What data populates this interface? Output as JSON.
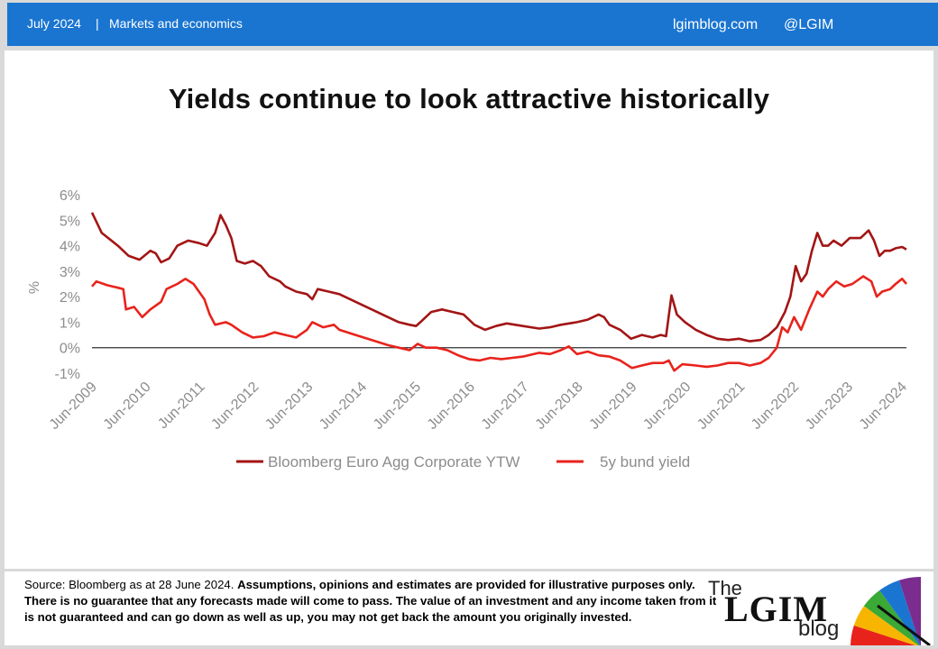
{
  "header": {
    "date": "July 2024",
    "separator": "|",
    "category": "Markets and economics",
    "site": "lgimblog.com",
    "handle": "@LGIM"
  },
  "chart_title": "Yields continue to look attractive historically",
  "chart_data": {
    "type": "line",
    "title": "Yields continue to look attractive historically",
    "xlabel": "",
    "ylabel": "%",
    "ylim": [
      -1,
      6
    ],
    "yticks": [
      "-1%",
      "0%",
      "1%",
      "2%",
      "3%",
      "4%",
      "5%",
      "6%"
    ],
    "xlim": [
      2009.42,
      2024.5
    ],
    "xtick_values": [
      2009.42,
      2010.42,
      2011.42,
      2012.42,
      2013.42,
      2014.42,
      2015.42,
      2016.42,
      2017.42,
      2018.42,
      2019.42,
      2020.42,
      2021.42,
      2022.42,
      2023.42,
      2024.42
    ],
    "xticks": [
      "Jun-2009",
      "Jun-2010",
      "Jun-2011",
      "Jun-2012",
      "Jun-2013",
      "Jun-2014",
      "Jun-2015",
      "Jun-2016",
      "Jun-2017",
      "Jun-2018",
      "Jun-2019",
      "Jun-2020",
      "Jun-2021",
      "Jun-2022",
      "Jun-2023",
      "Jun-2024"
    ],
    "legend_position": "bottom",
    "zero_line": true,
    "series": [
      {
        "name": "Bloomberg Euro Agg Corporate YTW",
        "color": "#a31515",
        "points": [
          [
            2009.42,
            5.3
          ],
          [
            2009.6,
            4.5
          ],
          [
            2009.9,
            4.0
          ],
          [
            2010.1,
            3.6
          ],
          [
            2010.3,
            3.45
          ],
          [
            2010.5,
            3.8
          ],
          [
            2010.6,
            3.7
          ],
          [
            2010.7,
            3.35
          ],
          [
            2010.85,
            3.5
          ],
          [
            2011.0,
            4.0
          ],
          [
            2011.2,
            4.2
          ],
          [
            2011.4,
            4.1
          ],
          [
            2011.55,
            4.0
          ],
          [
            2011.7,
            4.5
          ],
          [
            2011.8,
            5.2
          ],
          [
            2011.9,
            4.8
          ],
          [
            2012.0,
            4.3
          ],
          [
            2012.1,
            3.4
          ],
          [
            2012.25,
            3.3
          ],
          [
            2012.4,
            3.4
          ],
          [
            2012.55,
            3.2
          ],
          [
            2012.7,
            2.8
          ],
          [
            2012.9,
            2.6
          ],
          [
            2013.0,
            2.4
          ],
          [
            2013.2,
            2.2
          ],
          [
            2013.4,
            2.1
          ],
          [
            2013.5,
            1.9
          ],
          [
            2013.6,
            2.3
          ],
          [
            2013.8,
            2.2
          ],
          [
            2014.0,
            2.1
          ],
          [
            2014.3,
            1.8
          ],
          [
            2014.6,
            1.5
          ],
          [
            2014.9,
            1.2
          ],
          [
            2015.1,
            1.0
          ],
          [
            2015.3,
            0.9
          ],
          [
            2015.42,
            0.85
          ],
          [
            2015.5,
            1.0
          ],
          [
            2015.7,
            1.4
          ],
          [
            2015.9,
            1.5
          ],
          [
            2016.1,
            1.4
          ],
          [
            2016.3,
            1.3
          ],
          [
            2016.5,
            0.9
          ],
          [
            2016.7,
            0.7
          ],
          [
            2016.9,
            0.85
          ],
          [
            2017.1,
            0.95
          ],
          [
            2017.4,
            0.85
          ],
          [
            2017.7,
            0.75
          ],
          [
            2017.9,
            0.8
          ],
          [
            2018.1,
            0.9
          ],
          [
            2018.4,
            1.0
          ],
          [
            2018.6,
            1.1
          ],
          [
            2018.8,
            1.3
          ],
          [
            2018.9,
            1.2
          ],
          [
            2019.0,
            0.9
          ],
          [
            2019.2,
            0.7
          ],
          [
            2019.4,
            0.35
          ],
          [
            2019.6,
            0.5
          ],
          [
            2019.8,
            0.4
          ],
          [
            2019.95,
            0.5
          ],
          [
            2020.05,
            0.45
          ],
          [
            2020.15,
            2.05
          ],
          [
            2020.25,
            1.3
          ],
          [
            2020.4,
            1.0
          ],
          [
            2020.6,
            0.7
          ],
          [
            2020.8,
            0.5
          ],
          [
            2021.0,
            0.35
          ],
          [
            2021.2,
            0.3
          ],
          [
            2021.4,
            0.35
          ],
          [
            2021.6,
            0.25
          ],
          [
            2021.8,
            0.3
          ],
          [
            2021.95,
            0.5
          ],
          [
            2022.1,
            0.8
          ],
          [
            2022.25,
            1.4
          ],
          [
            2022.35,
            2.0
          ],
          [
            2022.45,
            3.2
          ],
          [
            2022.55,
            2.6
          ],
          [
            2022.65,
            2.9
          ],
          [
            2022.75,
            3.8
          ],
          [
            2022.85,
            4.5
          ],
          [
            2022.95,
            4.0
          ],
          [
            2023.05,
            4.0
          ],
          [
            2023.15,
            4.2
          ],
          [
            2023.3,
            4.0
          ],
          [
            2023.45,
            4.3
          ],
          [
            2023.65,
            4.3
          ],
          [
            2023.8,
            4.6
          ],
          [
            2023.9,
            4.2
          ],
          [
            2024.0,
            3.6
          ],
          [
            2024.1,
            3.8
          ],
          [
            2024.2,
            3.8
          ],
          [
            2024.3,
            3.9
          ],
          [
            2024.42,
            3.95
          ],
          [
            2024.5,
            3.85
          ]
        ]
      },
      {
        "name": "5y bund yield",
        "color": "#e8231c",
        "points": [
          [
            2009.42,
            2.4
          ],
          [
            2009.5,
            2.6
          ],
          [
            2009.7,
            2.45
          ],
          [
            2009.9,
            2.35
          ],
          [
            2010.0,
            2.3
          ],
          [
            2010.05,
            1.5
          ],
          [
            2010.2,
            1.6
          ],
          [
            2010.35,
            1.2
          ],
          [
            2010.5,
            1.5
          ],
          [
            2010.7,
            1.8
          ],
          [
            2010.8,
            2.3
          ],
          [
            2011.0,
            2.5
          ],
          [
            2011.15,
            2.7
          ],
          [
            2011.3,
            2.5
          ],
          [
            2011.5,
            1.9
          ],
          [
            2011.6,
            1.3
          ],
          [
            2011.7,
            0.9
          ],
          [
            2011.9,
            1.0
          ],
          [
            2012.0,
            0.9
          ],
          [
            2012.2,
            0.6
          ],
          [
            2012.4,
            0.4
          ],
          [
            2012.6,
            0.45
          ],
          [
            2012.8,
            0.6
          ],
          [
            2013.0,
            0.5
          ],
          [
            2013.2,
            0.4
          ],
          [
            2013.4,
            0.7
          ],
          [
            2013.5,
            1.0
          ],
          [
            2013.7,
            0.8
          ],
          [
            2013.9,
            0.9
          ],
          [
            2014.0,
            0.7
          ],
          [
            2014.3,
            0.5
          ],
          [
            2014.6,
            0.3
          ],
          [
            2014.9,
            0.1
          ],
          [
            2015.1,
            0.0
          ],
          [
            2015.3,
            -0.1
          ],
          [
            2015.45,
            0.15
          ],
          [
            2015.6,
            0.0
          ],
          [
            2015.8,
            0.0
          ],
          [
            2016.0,
            -0.1
          ],
          [
            2016.2,
            -0.3
          ],
          [
            2016.4,
            -0.45
          ],
          [
            2016.6,
            -0.5
          ],
          [
            2016.8,
            -0.4
          ],
          [
            2017.0,
            -0.45
          ],
          [
            2017.2,
            -0.4
          ],
          [
            2017.4,
            -0.35
          ],
          [
            2017.7,
            -0.2
          ],
          [
            2017.9,
            -0.25
          ],
          [
            2018.1,
            -0.1
          ],
          [
            2018.25,
            0.05
          ],
          [
            2018.4,
            -0.25
          ],
          [
            2018.6,
            -0.15
          ],
          [
            2018.8,
            -0.3
          ],
          [
            2019.0,
            -0.35
          ],
          [
            2019.2,
            -0.5
          ],
          [
            2019.42,
            -0.8
          ],
          [
            2019.6,
            -0.7
          ],
          [
            2019.8,
            -0.6
          ],
          [
            2020.0,
            -0.6
          ],
          [
            2020.1,
            -0.5
          ],
          [
            2020.2,
            -0.9
          ],
          [
            2020.35,
            -0.65
          ],
          [
            2020.6,
            -0.7
          ],
          [
            2020.8,
            -0.75
          ],
          [
            2021.0,
            -0.7
          ],
          [
            2021.2,
            -0.6
          ],
          [
            2021.4,
            -0.6
          ],
          [
            2021.6,
            -0.7
          ],
          [
            2021.8,
            -0.6
          ],
          [
            2021.95,
            -0.4
          ],
          [
            2022.1,
            0.0
          ],
          [
            2022.2,
            0.8
          ],
          [
            2022.3,
            0.6
          ],
          [
            2022.42,
            1.2
          ],
          [
            2022.55,
            0.7
          ],
          [
            2022.7,
            1.5
          ],
          [
            2022.85,
            2.2
          ],
          [
            2022.95,
            2.0
          ],
          [
            2023.05,
            2.3
          ],
          [
            2023.2,
            2.6
          ],
          [
            2023.35,
            2.4
          ],
          [
            2023.5,
            2.5
          ],
          [
            2023.7,
            2.8
          ],
          [
            2023.85,
            2.6
          ],
          [
            2023.95,
            2.0
          ],
          [
            2024.05,
            2.2
          ],
          [
            2024.2,
            2.3
          ],
          [
            2024.3,
            2.5
          ],
          [
            2024.42,
            2.7
          ],
          [
            2024.5,
            2.5
          ]
        ]
      }
    ]
  },
  "footer": {
    "source": "Source: Bloomberg as at 28 June 2024. ",
    "disclaimer": "Assumptions,  opinions and estimates are provided for illustrative purposes only.  There is no guarantee that any  forecasts made will come to pass.  The value of an investment and any income taken from it is  not guaranteed and can go down as well as up, you may  not get back the amount you originally invested.",
    "logo_the": "The",
    "logo_lgim": "LGIM",
    "logo_blog": "blog",
    "umbrella_colors": [
      "#e8231c",
      "#f7b500",
      "#3aa935",
      "#1a75d1",
      "#7b2c8f"
    ]
  }
}
